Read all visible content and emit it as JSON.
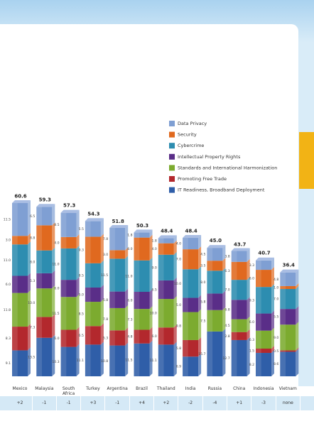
{
  "chart_data": {
    "type": "stacked-bar",
    "categories": [
      "Mexico",
      "Malaysia",
      "South Africa",
      "Turkey",
      "Argentina",
      "Brazil",
      "Thailand",
      "India",
      "Russia",
      "China",
      "Indonesia",
      "Vietnam"
    ],
    "series": [
      {
        "name": "IT Readiness, Broadband Deployment",
        "color": "#2f5ea8",
        "values": [
          9.1,
          13.5,
          10.3,
          11.1,
          10.8,
          11.5,
          11.1,
          6.9,
          15.7,
          12.7,
          8.2,
          8.6
        ],
        "value_labels": [
          "9.1",
          "13.5",
          "10.3",
          "11.1",
          "10.8",
          "11.5",
          "11.1",
          "6.9",
          "15.7",
          "12.7",
          "8.2",
          "8.6"
        ]
      },
      {
        "name": "Promoting Free Trade",
        "color": "#b3282d",
        "values": [
          8.3,
          7.3,
          6.0,
          6.5,
          5.3,
          4.8,
          6.0,
          5.8,
          0,
          2.8,
          1.5,
          0.5
        ],
        "value_labels": [
          "8.3",
          "7.3",
          "6.0",
          "6.5",
          "5.3",
          "4.8",
          "6.0",
          "5.8",
          null,
          "2.8",
          "1.5",
          "0.5"
        ]
      },
      {
        "name": "Standards and International Harmonization",
        "color": "#7cab2f",
        "values": [
          11.8,
          10.0,
          11.5,
          8.5,
          7.8,
          7.3,
          10.0,
          9.8,
          7.5,
          4.5,
          6.3,
          9.0
        ],
        "value_labels": [
          "11.8",
          "10.0",
          "11.5",
          "8.5",
          "7.8",
          "7.3",
          "10.0",
          "9.8",
          "7.5",
          "4.5",
          "6.3",
          "9.0"
        ]
      },
      {
        "name": "Intellectual Property Rights",
        "color": "#5a2e88",
        "values": [
          6.0,
          5.3,
          6.0,
          5.0,
          5.8,
          6.0,
          6.5,
          5.0,
          5.8,
          6.8,
          6.0,
          5.5
        ],
        "value_labels": [
          "6.0",
          "5.3",
          "6.0",
          "5.0",
          "5.8",
          "6.0",
          "6.5",
          "5.0",
          "5.8",
          "6.8",
          "6.0",
          "5.5"
        ]
      },
      {
        "name": "Cybercrime",
        "color": "#2d8db0",
        "values": [
          11.0,
          8.0,
          11.0,
          8.5,
          11.5,
          11.0,
          9.0,
          10.0,
          8.0,
          7.0,
          9.3,
          7.0
        ],
        "value_labels": [
          "11.0",
          "8.0",
          "11.0",
          "8.5",
          "11.5",
          "11.0",
          "9.0",
          "10.0",
          "8.0",
          "7.0",
          "9.3",
          "7.0"
        ]
      },
      {
        "name": "Security",
        "color": "#e0691f",
        "values": [
          3.0,
          8.8,
          4.0,
          9.3,
          3.0,
          8.0,
          4.0,
          7.0,
          3.5,
          6.3,
          6.0,
          1.0
        ],
        "value_labels": [
          "3.0",
          "8.8",
          "4.0",
          "9.3",
          "3.0",
          "8.0",
          "4.0",
          "7.0",
          "3.5",
          "6.3",
          "6.0",
          "1.0"
        ]
      },
      {
        "name": "Data Privacy",
        "color": "#7f9fd3",
        "values": [
          11.5,
          6.5,
          8.5,
          5.5,
          7.8,
          1.8,
          1.8,
          4.0,
          4.5,
          3.8,
          3.3,
          4.8
        ],
        "value_labels": [
          "11.5",
          "6.5",
          "8.5",
          "5.5",
          "7.8",
          "1.8",
          "1.8",
          "4.0",
          "4.5",
          "3.8",
          "3.3",
          "4.8"
        ]
      }
    ],
    "totals": {
      "values": [
        60.6,
        59.3,
        57.3,
        54.3,
        51.8,
        50.3,
        48.4,
        48.4,
        45.0,
        43.7,
        40.7,
        36.4
      ],
      "value_labels": [
        "60.6",
        "59.3",
        "57.3",
        "54.3",
        "51.8",
        "50.3",
        "48.4",
        "48.4",
        "45.0",
        "43.7",
        "40.7",
        "36.4"
      ]
    },
    "changes": [
      "+2",
      "-1",
      "-1",
      "+3",
      "-1",
      "+4",
      "+2",
      "-2",
      "-4",
      "+1",
      "-3",
      "none"
    ],
    "legend": "upper-right"
  }
}
